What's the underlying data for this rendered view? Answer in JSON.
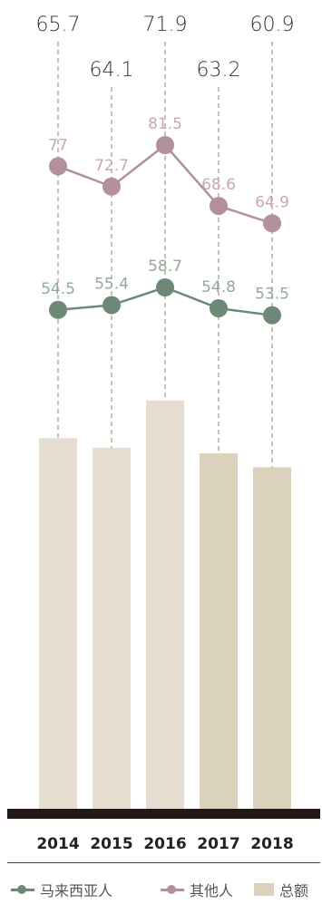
{
  "chart_data": {
    "type": "bar",
    "categories": [
      "2014",
      "2015",
      "2016",
      "2017",
      "2018"
    ],
    "series": [
      {
        "name": "总额",
        "kind": "bar",
        "values": [
          65.7,
          64.1,
          71.9,
          63.2,
          60.9
        ],
        "labels": [
          "65.7",
          "64.1",
          "71.9",
          "63.2",
          "60.9"
        ]
      },
      {
        "name": "其他人",
        "kind": "line",
        "values": [
          77,
          72.7,
          81.5,
          68.6,
          64.9
        ],
        "labels": [
          "77",
          "72.7",
          "81.5",
          "68.6",
          "64.9"
        ]
      },
      {
        "name": "马来西亚人",
        "kind": "line",
        "values": [
          54.5,
          55.4,
          58.7,
          54.8,
          53.5
        ],
        "labels": [
          "54.5",
          "55.4",
          "58.7",
          "54.8",
          "53.5"
        ]
      }
    ],
    "colors": {
      "bar_light": "#e5ddcf",
      "bar_dark": "#dad2bd",
      "others": "#b3909a",
      "malaysian": "#6e8877",
      "dashed": "#b59f82",
      "baseline": "#231815",
      "value_label": "#333333",
      "others_label": "#c9a8b0",
      "malaysian_label": "#94a89b"
    },
    "grid": false,
    "legend_position": "bottom"
  },
  "legend": {
    "malaysian": "马来西亚人",
    "others": "其他人",
    "total": "总额"
  }
}
